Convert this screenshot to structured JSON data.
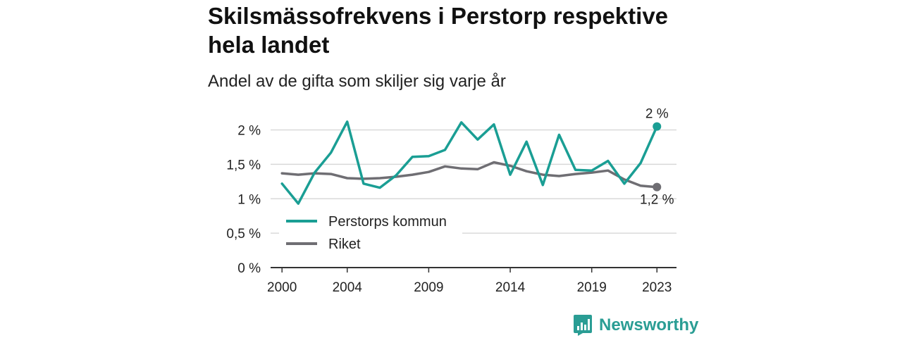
{
  "header": {
    "title": "Skilsmässofrekvens i Perstorp respektive hela landet",
    "subtitle": "Andel av de gifta som skiljer sig varje år"
  },
  "brand": {
    "name": "Newsworthy",
    "icon": "newsworthy-logo-icon"
  },
  "colors": {
    "perstorp": "#1a9e94",
    "riket": "#6f6e73",
    "grid": "#d9d9d9",
    "axis": "#333333"
  },
  "chart_data": {
    "type": "line",
    "x": [
      2000,
      2001,
      2002,
      2003,
      2004,
      2005,
      2006,
      2007,
      2008,
      2009,
      2010,
      2011,
      2012,
      2013,
      2014,
      2015,
      2016,
      2017,
      2018,
      2019,
      2020,
      2021,
      2022,
      2023
    ],
    "series": [
      {
        "name": "Perstorps kommun",
        "values": [
          1.22,
          0.93,
          1.38,
          1.67,
          2.12,
          1.22,
          1.16,
          1.34,
          1.61,
          1.62,
          1.71,
          2.11,
          1.86,
          2.08,
          1.35,
          1.83,
          1.2,
          1.93,
          1.42,
          1.41,
          1.55,
          1.22,
          1.52,
          2.05
        ]
      },
      {
        "name": "Riket",
        "values": [
          1.37,
          1.35,
          1.37,
          1.36,
          1.3,
          1.29,
          1.3,
          1.32,
          1.35,
          1.39,
          1.47,
          1.44,
          1.43,
          1.53,
          1.48,
          1.4,
          1.35,
          1.33,
          1.36,
          1.38,
          1.41,
          1.28,
          1.19,
          1.17
        ]
      }
    ],
    "x_ticks": [
      2000,
      2004,
      2009,
      2014,
      2019,
      2023
    ],
    "x_tick_labels": [
      "2000",
      "2004",
      "2009",
      "2014",
      "2019",
      "2023"
    ],
    "y_ticks": [
      0,
      0.5,
      1,
      1.5,
      2
    ],
    "y_tick_labels": [
      "0 %",
      "0,5 %",
      "1 %",
      "1,5 %",
      "2 %"
    ],
    "ylim": [
      0,
      2.2
    ],
    "xlim": [
      1999.3,
      2024.2
    ],
    "grid": true,
    "legend": {
      "placement": "bottom-left",
      "entries": [
        "Perstorps kommun",
        "Riket"
      ]
    },
    "end_labels": {
      "perstorp": "2 %",
      "riket": "1,2 %"
    }
  }
}
